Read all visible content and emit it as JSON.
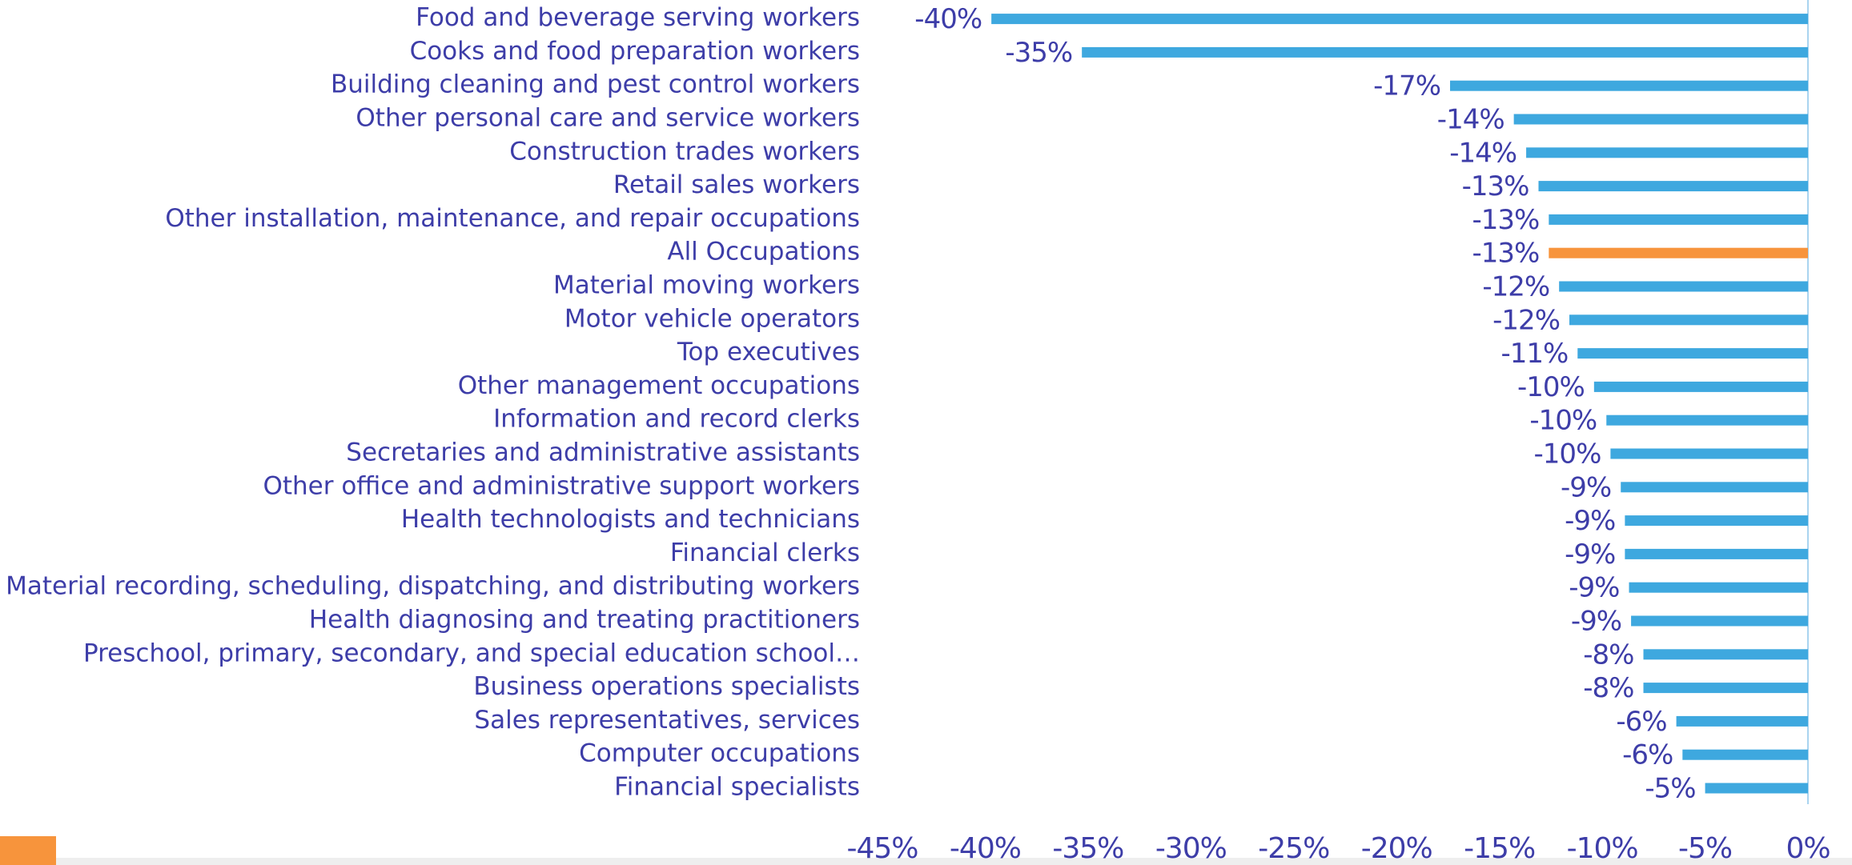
{
  "chart_data": {
    "type": "hbar",
    "categories": [
      "Food and beverage serving workers",
      "Cooks and food preparation workers",
      "Building cleaning and pest control workers",
      "Other personal care and service workers",
      "Construction trades workers",
      "Retail sales workers",
      "Other installation, maintenance, and repair occupations",
      "All Occupations",
      "Material moving workers",
      "Motor vehicle operators",
      "Top executives",
      "Other management occupations",
      "Information and record clerks",
      "Secretaries and administrative assistants",
      "Other office and administrative support workers",
      "Health technologists and technicians",
      "Financial clerks",
      "Material recording, scheduling, dispatching, and distributing workers",
      "Health diagnosing and treating practitioners",
      "Preschool, primary, secondary, and special education school…",
      "Business operations specialists",
      "Sales representatives, services",
      "Computer occupations",
      "Financial specialists"
    ],
    "values": [
      -39.7,
      -35.3,
      -17.4,
      -14.3,
      -13.7,
      -13.1,
      -12.6,
      -12.6,
      -12.1,
      -11.6,
      -11.2,
      -10.4,
      -9.8,
      -9.6,
      -9.1,
      -8.9,
      -8.9,
      -8.7,
      -8.6,
      -8.0,
      -8.0,
      -6.4,
      -6.1,
      -5.0
    ],
    "value_labels": [
      "-40%",
      "-35%",
      "-17%",
      "-14%",
      "-14%",
      "-13%",
      "-13%",
      "-13%",
      "-12%",
      "-12%",
      "-11%",
      "-10%",
      "-10%",
      "-10%",
      "-9%",
      "-9%",
      "-9%",
      "-9%",
      "-9%",
      "-8%",
      "-8%",
      "-6%",
      "-6%",
      "-5%"
    ],
    "colors": [
      "#3ea8df",
      "#3ea8df",
      "#3ea8df",
      "#3ea8df",
      "#3ea8df",
      "#3ea8df",
      "#3ea8df",
      "#f7943c",
      "#3ea8df",
      "#3ea8df",
      "#3ea8df",
      "#3ea8df",
      "#3ea8df",
      "#3ea8df",
      "#3ea8df",
      "#3ea8df",
      "#3ea8df",
      "#3ea8df",
      "#3ea8df",
      "#3ea8df",
      "#3ea8df",
      "#3ea8df",
      "#3ea8df",
      "#3ea8df"
    ],
    "xlim": [
      -45,
      0
    ],
    "xticks": [
      {
        "value": -45,
        "label": "-45%"
      },
      {
        "value": -40,
        "label": "-40%"
      },
      {
        "value": -35,
        "label": "-35%"
      },
      {
        "value": -30,
        "label": "-30%"
      },
      {
        "value": -25,
        "label": "-25%"
      },
      {
        "value": -20,
        "label": "-20%"
      },
      {
        "value": -15,
        "label": "-15%"
      },
      {
        "value": -10,
        "label": "-10%"
      },
      {
        "value": -5,
        "label": "-5%"
      },
      {
        "value": 0,
        "label": "0%"
      }
    ]
  }
}
